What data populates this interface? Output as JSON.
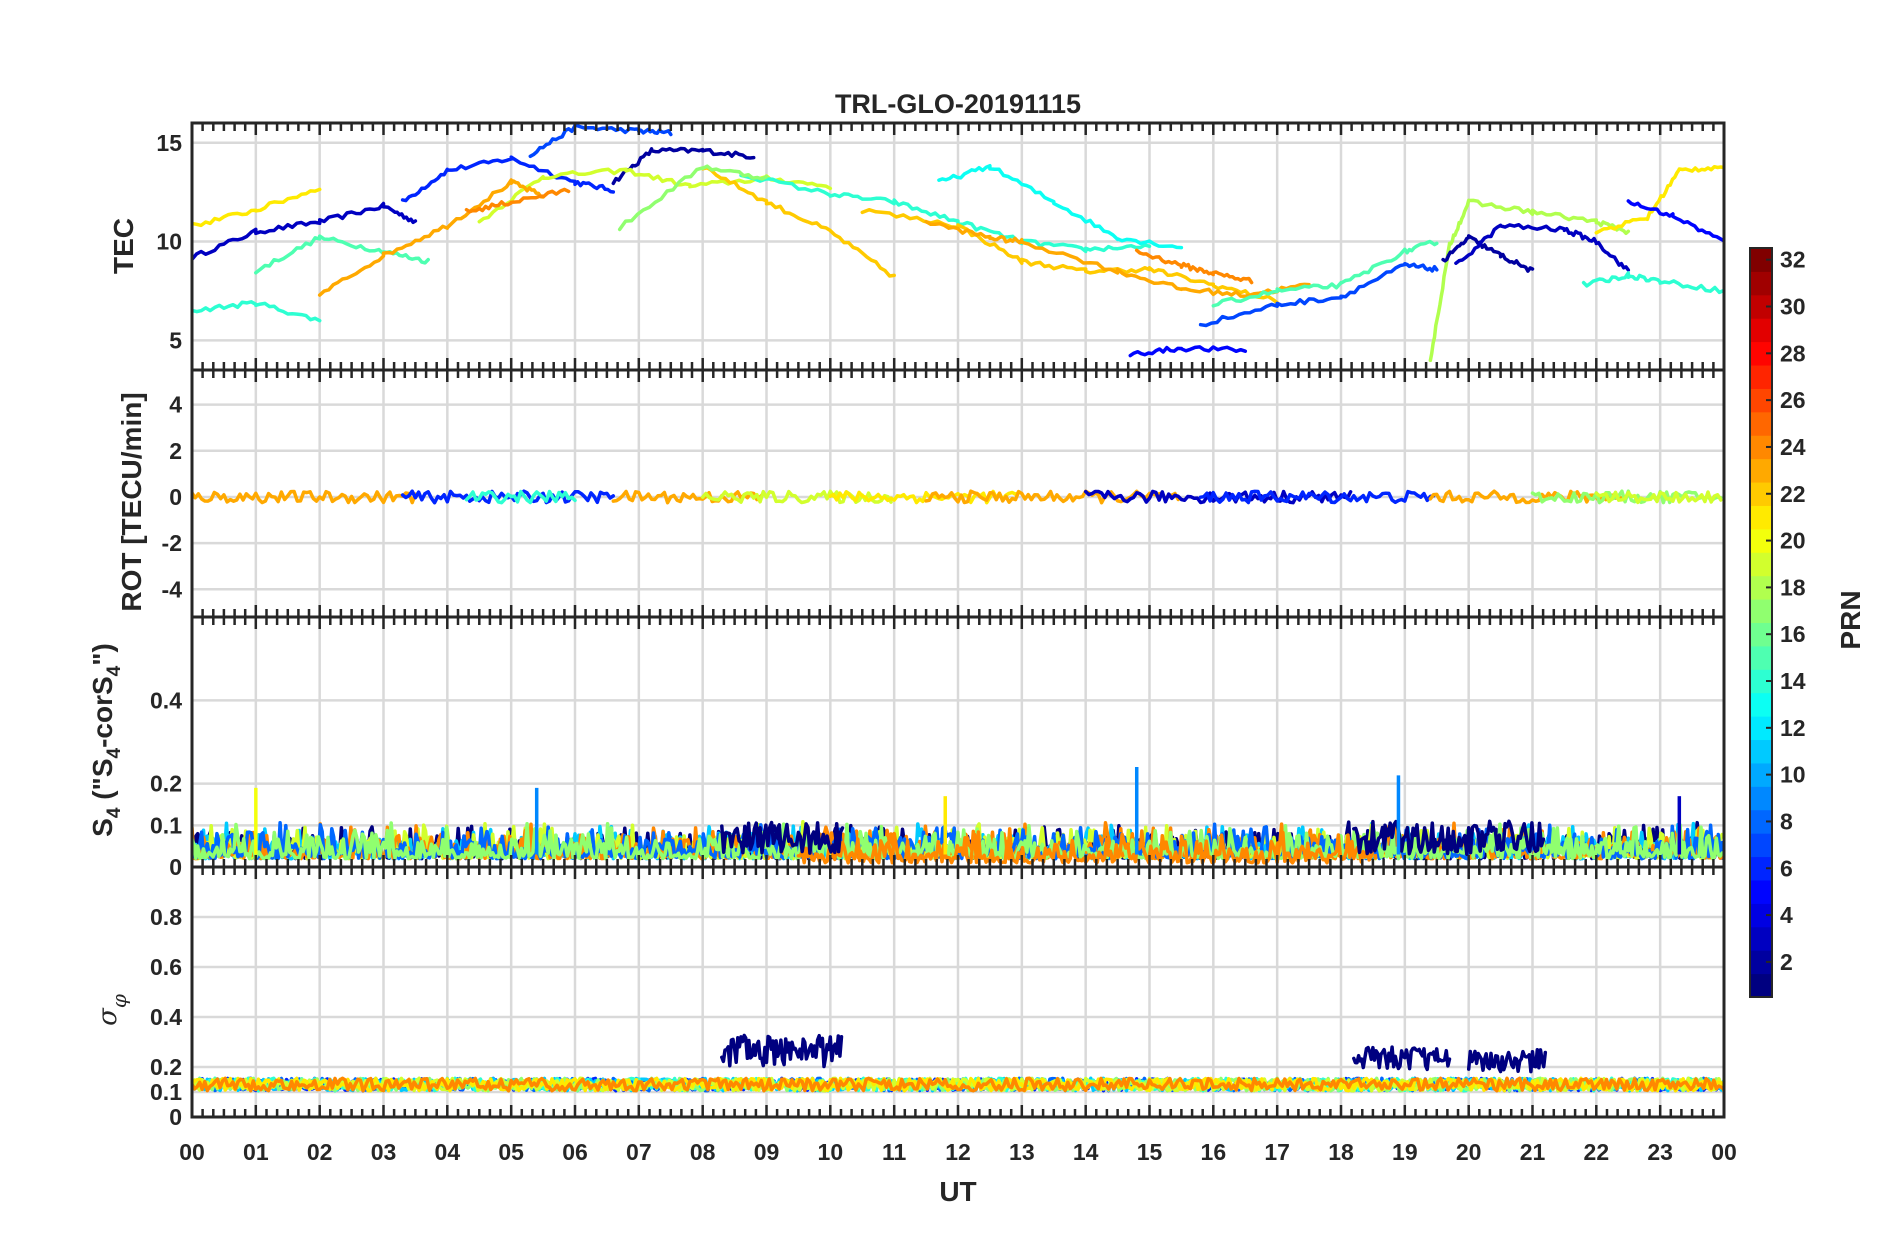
{
  "title": "TRL-GLO-20191115",
  "chart_data": {
    "type": "line",
    "title": "TRL-GLO-20191115",
    "xlabel": "UT",
    "x_ticks": [
      "00",
      "01",
      "02",
      "03",
      "04",
      "05",
      "06",
      "07",
      "08",
      "09",
      "10",
      "11",
      "12",
      "13",
      "14",
      "15",
      "16",
      "17",
      "18",
      "19",
      "20",
      "21",
      "22",
      "23",
      "00"
    ],
    "xlim": [
      0,
      24
    ],
    "colorbar": {
      "label": "PRN",
      "range": [
        1,
        32
      ],
      "ticks": [
        "2",
        "4",
        "6",
        "8",
        "10",
        "12",
        "14",
        "16",
        "18",
        "20",
        "22",
        "24",
        "26",
        "28",
        "30",
        "32"
      ]
    },
    "panels": [
      {
        "name": "TEC",
        "ylabel": "TEC",
        "ylim": [
          3.5,
          16
        ],
        "yticks": [
          "5",
          "10",
          "15"
        ],
        "series": [
          {
            "prn": 3,
            "points": [
              [
                0,
                9.2
              ],
              [
                1,
                10.5
              ],
              [
                2,
                11.0
              ],
              [
                3,
                11.8
              ],
              [
                3.5,
                11.0
              ]
            ]
          },
          {
            "prn": 6,
            "points": [
              [
                3.3,
                12.0
              ],
              [
                4,
                13.6
              ],
              [
                5,
                14.2
              ],
              [
                6,
                13.0
              ],
              [
                6.6,
                12.6
              ]
            ]
          },
          {
            "prn": 2,
            "points": [
              [
                6.6,
                13.0
              ],
              [
                7.2,
                14.6
              ],
              [
                8,
                14.6
              ],
              [
                8.8,
                14.3
              ]
            ]
          },
          {
            "prn": 7,
            "points": [
              [
                5.3,
                14.4
              ],
              [
                6,
                15.8
              ],
              [
                7,
                15.6
              ],
              [
                7.5,
                15.5
              ]
            ]
          },
          {
            "prn": 14,
            "points": [
              [
                0,
                6.5
              ],
              [
                1,
                6.9
              ],
              [
                2,
                6.0
              ]
            ]
          },
          {
            "prn": 15,
            "points": [
              [
                1,
                8.5
              ],
              [
                2,
                10.2
              ],
              [
                3,
                9.5
              ],
              [
                3.7,
                9.0
              ]
            ]
          },
          {
            "prn": 19,
            "points": [
              [
                4.5,
                11.0
              ],
              [
                5.5,
                13.3
              ],
              [
                6.8,
                13.6
              ],
              [
                7.8,
                12.8
              ],
              [
                9,
                13.2
              ],
              [
                10,
                12.8
              ]
            ]
          },
          {
            "prn": 21,
            "points": [
              [
                0,
                10.8
              ],
              [
                1,
                11.6
              ],
              [
                2,
                12.7
              ]
            ]
          },
          {
            "prn": 22,
            "points": [
              [
                8,
                13.8
              ],
              [
                9,
                12.0
              ],
              [
                10,
                10.5
              ],
              [
                11,
                8.2
              ]
            ]
          },
          {
            "prn": 23,
            "points": [
              [
                2.0,
                7.3
              ],
              [
                3,
                9.3
              ],
              [
                4,
                10.8
              ],
              [
                5,
                13.0
              ],
              [
                5.5,
                12.3
              ]
            ]
          },
          {
            "prn": 24,
            "points": [
              [
                4.3,
                11.5
              ],
              [
                5,
                12.0
              ],
              [
                5.9,
                12.6
              ]
            ]
          },
          {
            "prn": 14,
            "points": [
              [
                8.6,
                13.4
              ],
              [
                10,
                12.4
              ],
              [
                11,
                12.0
              ],
              [
                12,
                11.0
              ],
              [
                13,
                10.0
              ],
              [
                14,
                9.6
              ],
              [
                15,
                9.8
              ]
            ]
          },
          {
            "prn": 13,
            "points": [
              [
                11.7,
                13.0
              ],
              [
                12.5,
                13.8
              ],
              [
                13.5,
                12.0
              ],
              [
                14.5,
                10.2
              ],
              [
                15.5,
                9.7
              ]
            ]
          },
          {
            "prn": 17,
            "points": [
              [
                6.7,
                10.7
              ],
              [
                8,
                13.8
              ],
              [
                9,
                13.2
              ]
            ]
          },
          {
            "prn": 22,
            "points": [
              [
                10.5,
                11.6
              ],
              [
                12,
                10.8
              ],
              [
                13,
                9.0
              ],
              [
                14,
                8.5
              ],
              [
                15,
                8.6
              ],
              [
                16,
                7.8
              ],
              [
                17,
                7.0
              ]
            ]
          },
          {
            "prn": 23,
            "points": [
              [
                11.5,
                11.0
              ],
              [
                12.5,
                10.2
              ],
              [
                13,
                10.0
              ],
              [
                14.5,
                8.5
              ],
              [
                15.5,
                7.6
              ],
              [
                16.5,
                7.3
              ],
              [
                17.5,
                7.8
              ]
            ]
          },
          {
            "prn": 5,
            "points": [
              [
                14.7,
                4.3
              ],
              [
                15.5,
                4.6
              ],
              [
                16.5,
                4.5
              ]
            ]
          },
          {
            "prn": 24,
            "points": [
              [
                14.8,
                9.5
              ],
              [
                15.5,
                8.8
              ],
              [
                16,
                8.4
              ],
              [
                16.6,
                8.0
              ]
            ]
          },
          {
            "prn": 7,
            "points": [
              [
                15.8,
                5.8
              ],
              [
                17,
                6.8
              ],
              [
                18,
                7.2
              ],
              [
                19,
                8.8
              ],
              [
                19.5,
                8.6
              ]
            ]
          },
          {
            "prn": 15,
            "points": [
              [
                16,
                6.8
              ],
              [
                17,
                7.5
              ],
              [
                18,
                7.8
              ],
              [
                19,
                9.5
              ],
              [
                19.5,
                10.0
              ]
            ]
          },
          {
            "prn": 18,
            "points": [
              [
                19.4,
                4.0
              ],
              [
                19.7,
                9.8
              ],
              [
                20,
                12.0
              ],
              [
                21,
                11.5
              ],
              [
                22,
                11.0
              ],
              [
                22.5,
                10.5
              ]
            ]
          },
          {
            "prn": 2,
            "points": [
              [
                19.6,
                9.0
              ],
              [
                20,
                10.2
              ],
              [
                20.5,
                9.3
              ],
              [
                21,
                8.5
              ]
            ]
          },
          {
            "prn": 3,
            "points": [
              [
                19.8,
                8.8
              ],
              [
                20.5,
                10.8
              ],
              [
                21.5,
                10.6
              ],
              [
                22,
                10.0
              ],
              [
                22.5,
                8.5
              ]
            ]
          },
          {
            "prn": 21,
            "points": [
              [
                22,
                10.5
              ],
              [
                22.8,
                11.2
              ],
              [
                23.3,
                13.6
              ],
              [
                24,
                13.8
              ]
            ]
          },
          {
            "prn": 14,
            "points": [
              [
                21.8,
                7.8
              ],
              [
                22.5,
                8.3
              ],
              [
                23,
                8.0
              ],
              [
                24,
                7.5
              ]
            ]
          },
          {
            "prn": 5,
            "points": [
              [
                22.5,
                12.0
              ],
              [
                23.2,
                11.3
              ],
              [
                24,
                10.0
              ]
            ]
          }
        ]
      },
      {
        "name": "ROT",
        "ylabel": "ROT [TECU/min]",
        "ylim": [
          -5.2,
          5.5
        ],
        "yticks": [
          "4",
          "2",
          "0",
          "-2",
          "-4"
        ]
      },
      {
        "name": "S4",
        "ylabel_main": "S",
        "ylabel_sub1": "4",
        "ylabel_mid": " (\"S",
        "ylabel_sub2": "4",
        "ylabel_mid2": "-corS",
        "ylabel_sub3": "4",
        "ylabel_end": "\")",
        "ylim": [
          0,
          0.6
        ],
        "yticks": [
          "0.4",
          "0.2",
          "0.1",
          "0"
        ],
        "spikes": [
          {
            "t": 14.8,
            "v": 0.24,
            "prn": 9
          },
          {
            "t": 18.9,
            "v": 0.22,
            "prn": 9
          },
          {
            "t": 1.0,
            "v": 0.19,
            "prn": 20
          },
          {
            "t": 5.4,
            "v": 0.19,
            "prn": 9
          },
          {
            "t": 11.8,
            "v": 0.17,
            "prn": 21
          },
          {
            "t": 23.3,
            "v": 0.17,
            "prn": 3
          }
        ]
      },
      {
        "name": "sigma_phi",
        "ylabel": "σ",
        "ylabel_sub": "φ",
        "ylim": [
          0,
          1.0
        ],
        "yticks": [
          "0.8",
          "0.6",
          "0.4",
          "0.2",
          "0.1",
          "0"
        ],
        "bursts": [
          {
            "start": 8.3,
            "end": 10.2,
            "base": 0.2,
            "peak": 0.33,
            "prn": 1
          },
          {
            "start": 18.2,
            "end": 19.7,
            "base": 0.19,
            "peak": 0.28,
            "prn": 1
          },
          {
            "start": 20.0,
            "end": 21.2,
            "base": 0.18,
            "peak": 0.27,
            "prn": 1
          }
        ]
      }
    ]
  }
}
